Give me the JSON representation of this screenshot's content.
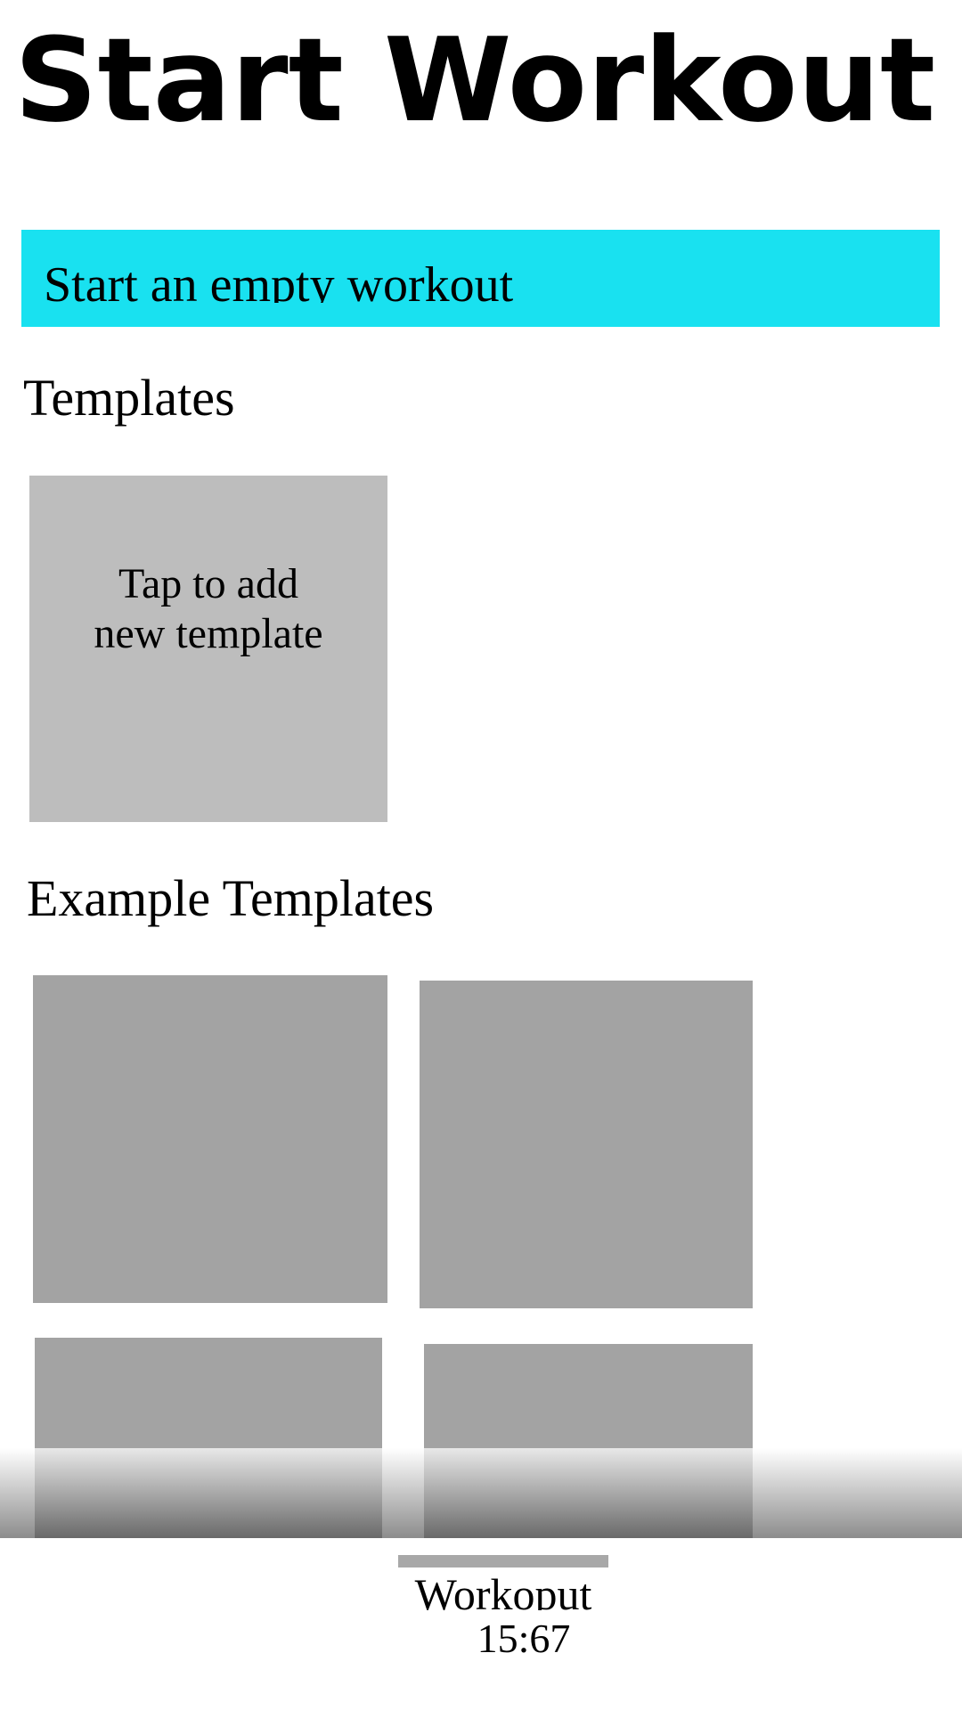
{
  "header": {
    "title": "Start Workout"
  },
  "empty_workout_button": {
    "label": "Start an empty workout"
  },
  "templates": {
    "heading": "Templates",
    "add_tile": {
      "line1": "Tap to add",
      "line2": "new template"
    }
  },
  "example_templates": {
    "heading": "Example Templates"
  },
  "active_workout": {
    "label": "Workoput",
    "timer": "15:67"
  }
}
